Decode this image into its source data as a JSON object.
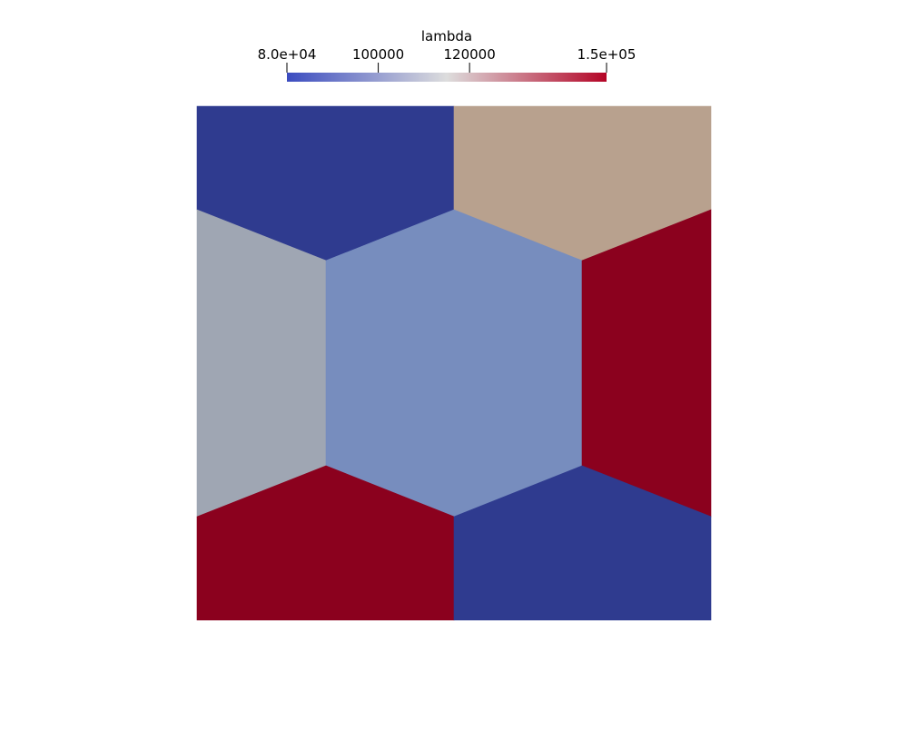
{
  "colorbar": {
    "title": "lambda",
    "range": [
      80000,
      150000
    ],
    "colormap": "cool to warm",
    "low_color": "#3b4cc0",
    "mid_color": "#dddddd",
    "high_color": "#b40426",
    "ticks": [
      {
        "value": 80000,
        "label": "8.0e+04"
      },
      {
        "value": 100000,
        "label": "100000"
      },
      {
        "value": 120000,
        "label": "120000"
      },
      {
        "value": 150000,
        "label": "1.5e+05"
      }
    ]
  },
  "mesh": {
    "cells": [
      {
        "id": "top-left",
        "color": "#2f3b8f"
      },
      {
        "id": "top-right",
        "color": "#b8a18e"
      },
      {
        "id": "left",
        "color": "#9fa6b3"
      },
      {
        "id": "center",
        "color": "#778dbe"
      },
      {
        "id": "right",
        "color": "#8b011e"
      },
      {
        "id": "bottom-left",
        "color": "#8b011e"
      },
      {
        "id": "bottom-right",
        "color": "#2f3b8f"
      }
    ]
  }
}
